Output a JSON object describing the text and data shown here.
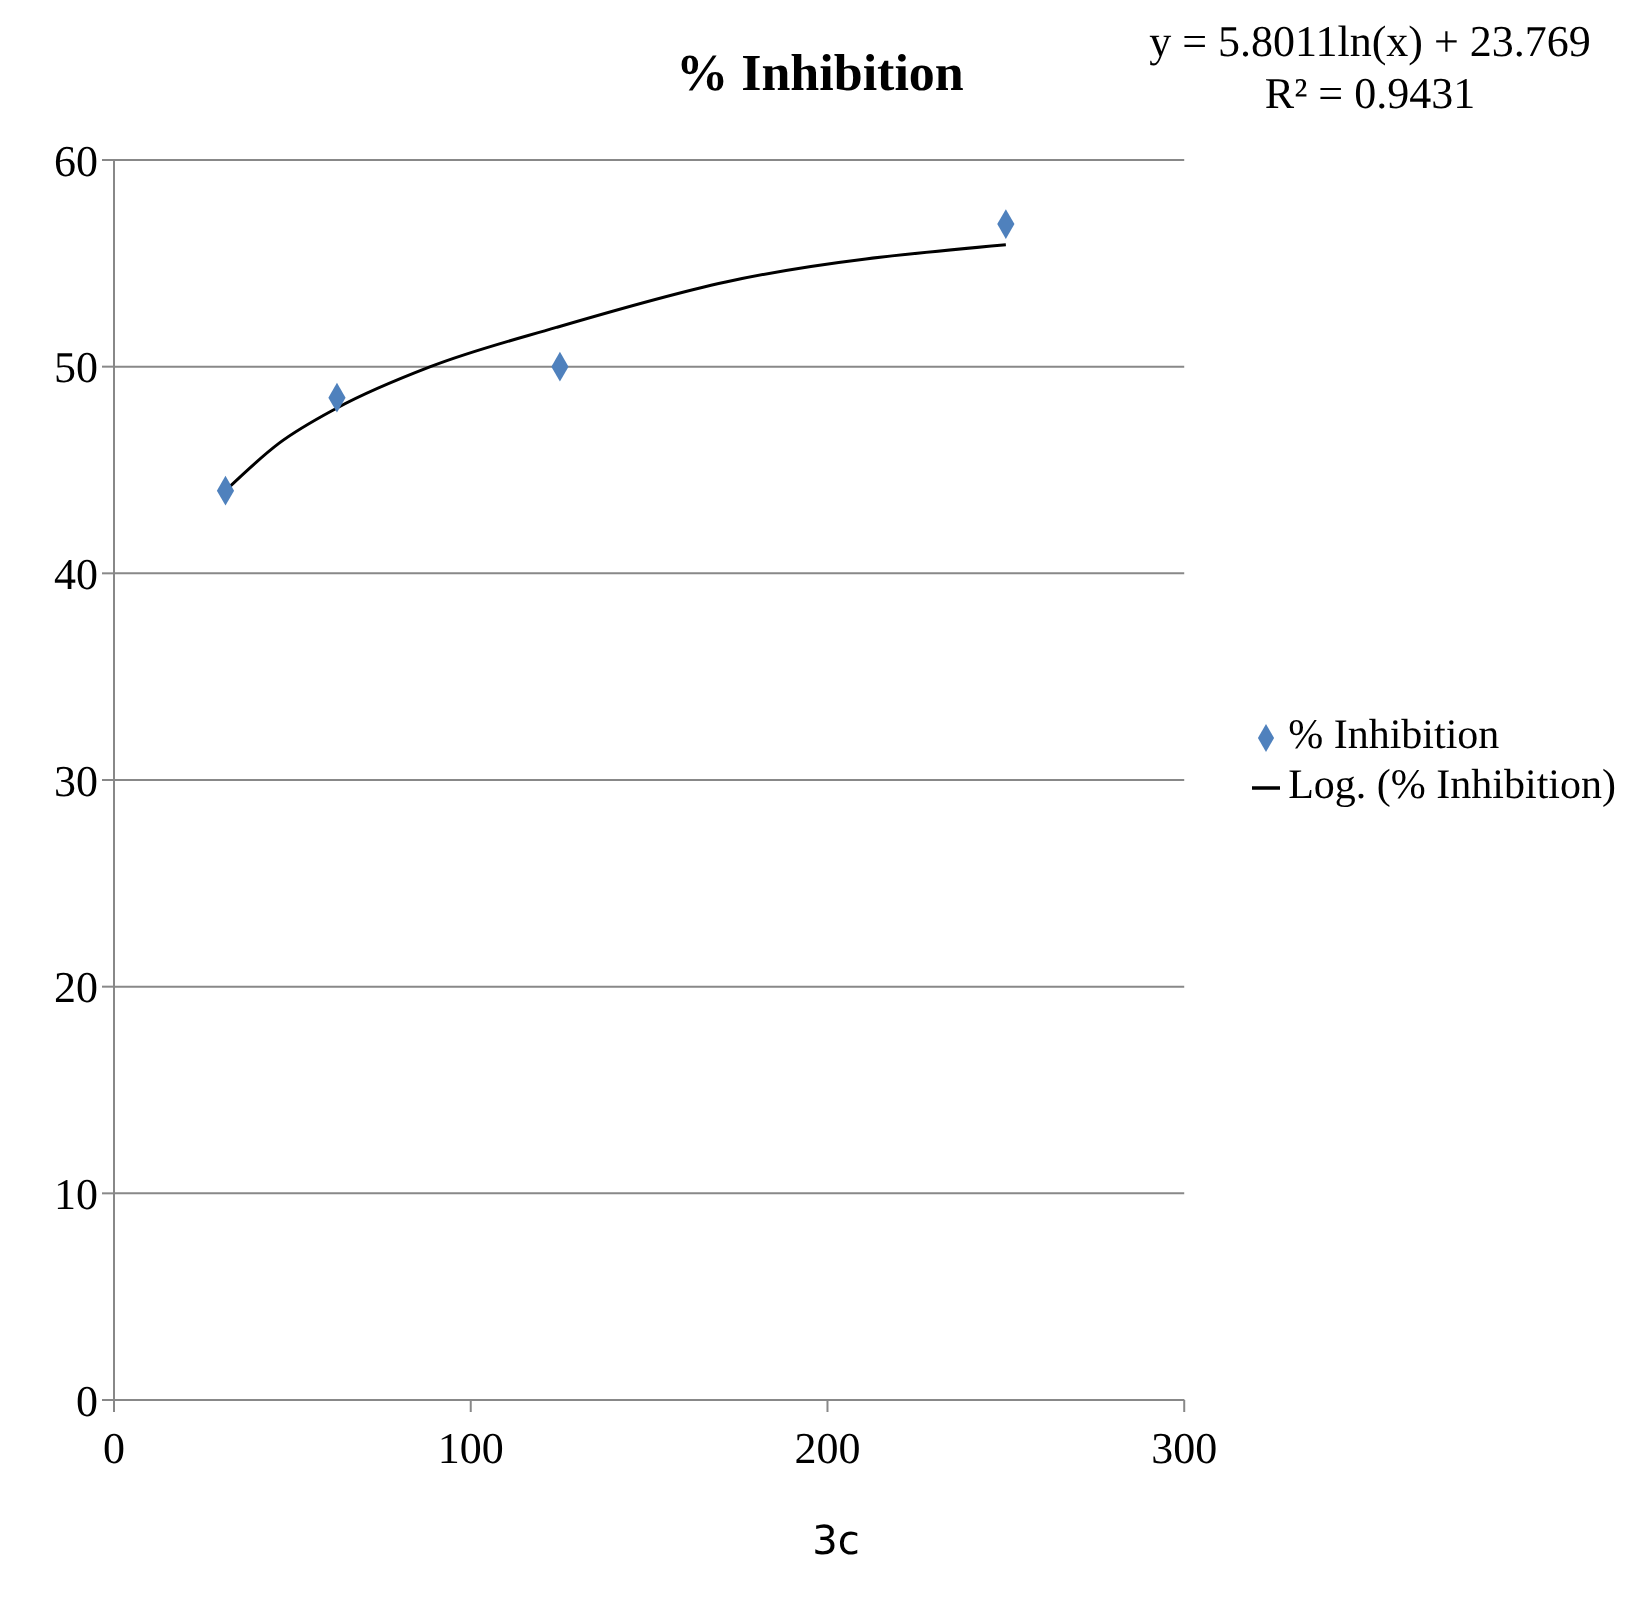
{
  "chart_data": {
    "type": "scatter",
    "title": "% Inhibition",
    "xlabel": "3c",
    "annotations": [
      "y = 5.8011ln(x) + 23.769",
      "R² = 0.9431"
    ],
    "series": [
      {
        "name": "% Inhibition",
        "color": "#4f81bd",
        "marker": "diamond",
        "x": [
          31.25,
          62.5,
          125,
          250
        ],
        "values": [
          44,
          48.5,
          50,
          56.9
        ]
      },
      {
        "name": "Log. (% Inhibition)",
        "type": "line",
        "color": "#000000",
        "marker": "none",
        "x": [
          31.25,
          46.3,
          62.5,
          88.7,
          124,
          171.5,
          250
        ],
        "values": [
          44,
          46.3,
          48,
          50,
          51.9,
          54.1,
          55.9
        ]
      }
    ],
    "xlim": [
      0,
      300
    ],
    "xticks": [
      0,
      100,
      200,
      300
    ],
    "ylim": [
      0,
      60
    ],
    "yticks": [
      0,
      10,
      20,
      30,
      40,
      50,
      60
    ],
    "grid": "y",
    "legend": "right"
  }
}
